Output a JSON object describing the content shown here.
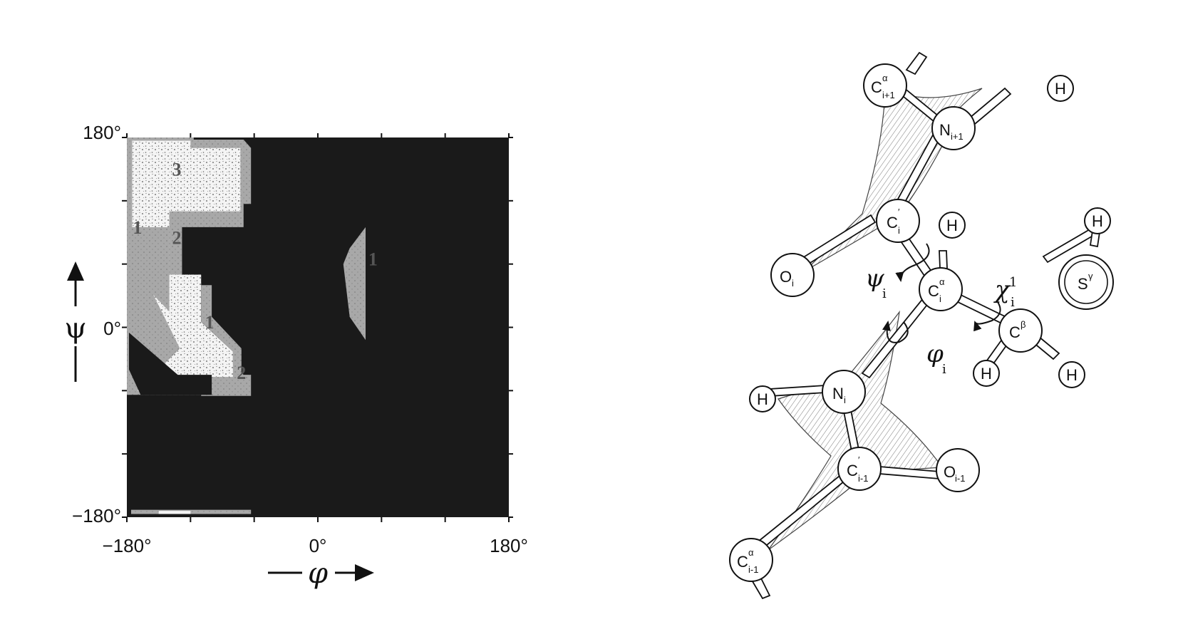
{
  "plot": {
    "x_ticks": [
      {
        "value": -180,
        "label": "−180°"
      },
      {
        "value": 0,
        "label": "0°"
      },
      {
        "value": 180,
        "label": "180°"
      }
    ],
    "y_ticks": [
      {
        "value": 180,
        "label": "180°"
      },
      {
        "value": 0,
        "label": "0°"
      },
      {
        "value": -180,
        "label": "−180°"
      }
    ],
    "x_axis_symbol": "φ",
    "y_axis_symbol": "ψ",
    "background_color": "#1a1a1a",
    "region_colors": {
      "allowed": "#f4f4f4",
      "marginal": "#a8a8a8"
    },
    "region_labels": [
      {
        "text": "3",
        "phi": -133,
        "psi": 150
      },
      {
        "text": "1",
        "phi": -170,
        "psi": 95
      },
      {
        "text": "2",
        "phi": -133,
        "psi": 85
      },
      {
        "text": "1",
        "phi": -102,
        "psi": 5
      },
      {
        "text": "2",
        "phi": -72,
        "psi": -43
      },
      {
        "text": "1",
        "phi": 52,
        "psi": 65
      }
    ]
  },
  "molecule": {
    "atoms": {
      "ca_ip1": {
        "main": "C",
        "sup": "α",
        "sub": "i+1"
      },
      "h_top": {
        "main": "H"
      },
      "n_ip1": {
        "main": "N",
        "sub": "i+1"
      },
      "c_i": {
        "main": "C",
        "sup": "′",
        "sub": "i"
      },
      "h_ca": {
        "main": "H"
      },
      "h_s": {
        "main": "H"
      },
      "o_i": {
        "main": "O",
        "sub": "i"
      },
      "ca_i": {
        "main": "C",
        "sup": "α",
        "sub": "i"
      },
      "s_g": {
        "main": "S",
        "sup": "γ"
      },
      "c_b": {
        "main": "C",
        "sup": "β"
      },
      "n_i": {
        "main": "N",
        "sub": "i"
      },
      "h_n": {
        "main": "H"
      },
      "h_cb1": {
        "main": "H"
      },
      "h_cb2": {
        "main": "H"
      },
      "c_im1": {
        "main": "C",
        "sup": "′",
        "sub": "i-1"
      },
      "o_im1": {
        "main": "O",
        "sub": "i-1"
      },
      "ca_im1": {
        "main": "C",
        "sup": "α",
        "sub": "i-1"
      }
    },
    "angles": {
      "psi": {
        "symbol": "ψ",
        "sub": "i"
      },
      "phi": {
        "symbol": "φ",
        "sub": "i"
      },
      "chi": {
        "symbol": "χ",
        "sup": "1",
        "sub": "i"
      }
    }
  }
}
